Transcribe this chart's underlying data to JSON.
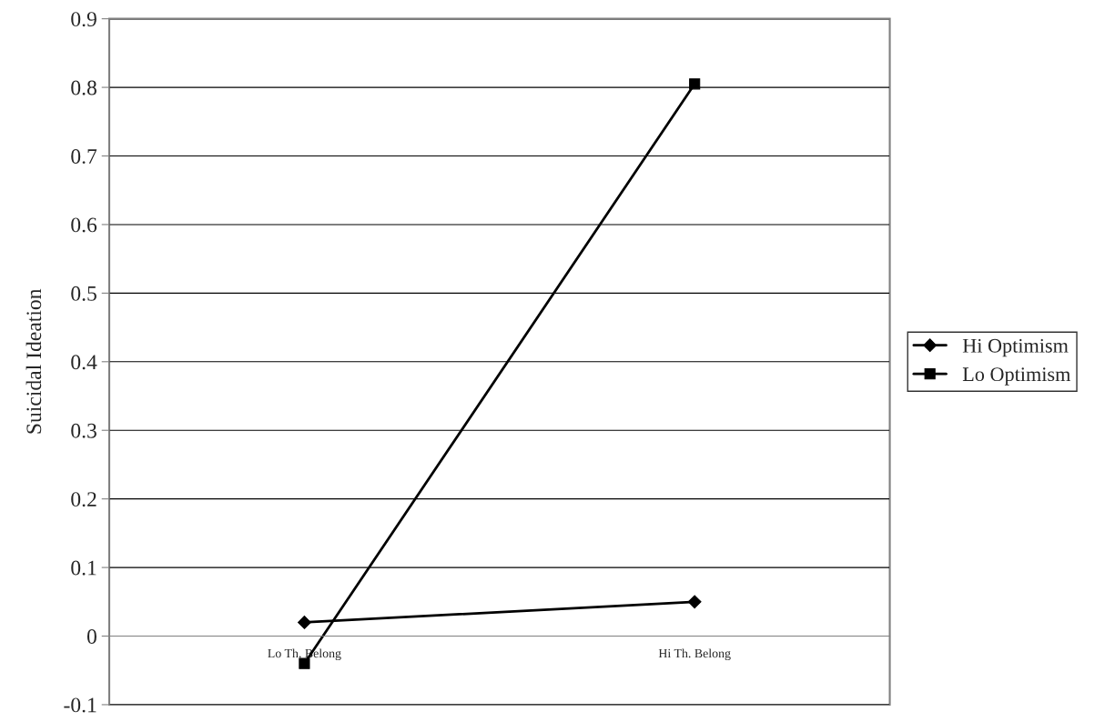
{
  "chart_data": {
    "type": "line",
    "ylabel": "Suicidal Ideation",
    "categories": [
      "Lo Th. Belong",
      "Hi Th. Belong"
    ],
    "series": [
      {
        "name": "Hi Optimism",
        "color": "#000000",
        "marker": "diamond",
        "values": [
          0.02,
          0.05
        ]
      },
      {
        "name": "Lo Optimism",
        "color": "#000000",
        "marker": "square",
        "values": [
          -0.04,
          0.805
        ]
      }
    ],
    "ylim": [
      -0.1,
      0.9
    ],
    "yticks": [
      -0.1,
      0,
      0.1,
      0.2,
      0.3,
      0.4,
      0.5,
      0.6,
      0.7,
      0.8,
      0.9
    ],
    "grid": "y",
    "legend": "right",
    "line_style": "solid"
  }
}
